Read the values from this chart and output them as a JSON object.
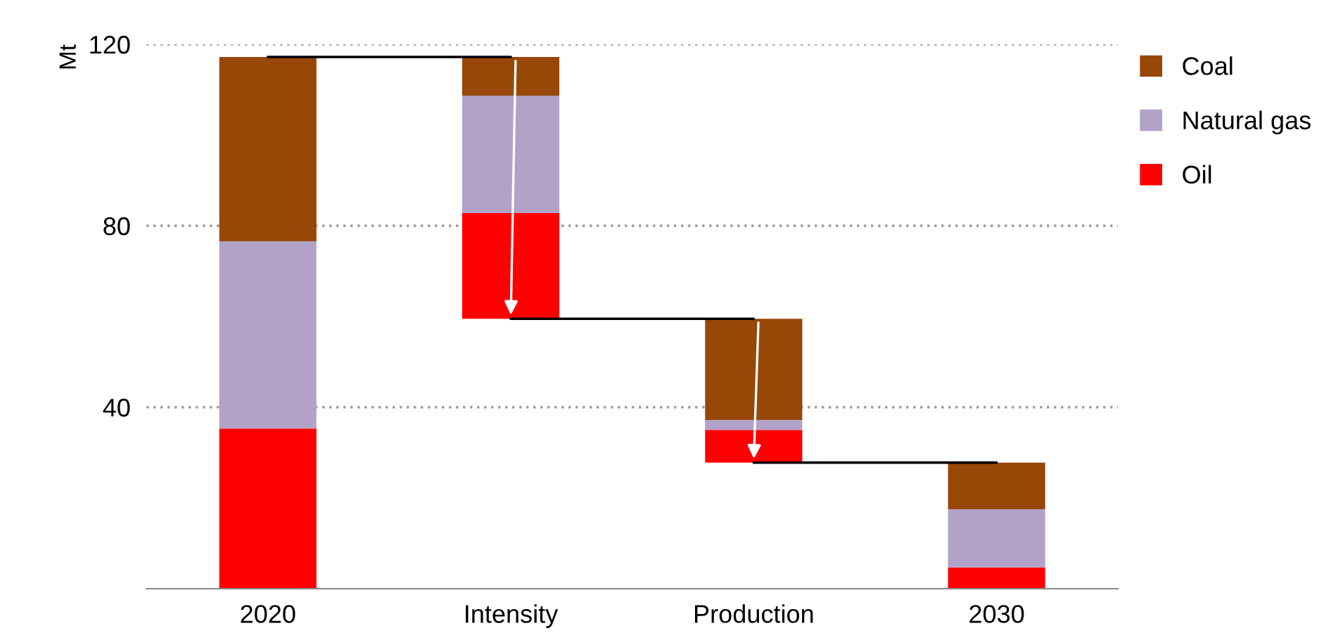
{
  "chart_data": {
    "type": "bar",
    "ylabel": "Mt",
    "categories": [
      "2020",
      "Intensity",
      "Production",
      "2030"
    ],
    "series": [
      {
        "name": "Oil",
        "color": "#ff0000",
        "base": [
          0,
          59.5,
          27.8,
          0
        ],
        "values": [
          35.3,
          23.3,
          7.2,
          4.7
        ]
      },
      {
        "name": "Natural gas",
        "color": "#b3a2c7",
        "base": [
          35.3,
          82.8,
          35,
          4.7
        ],
        "values": [
          41.3,
          25.9,
          2.2,
          12.8
        ]
      },
      {
        "name": "Coal",
        "color": "#974706",
        "base": [
          76.6,
          108.7,
          37.2,
          17.5
        ],
        "values": [
          40.6,
          8.5,
          22.3,
          10.3
        ]
      },
      {
        "type": "line",
        "color": "#000000",
        "values": [
          117.2,
          117.2,
          null,
          null
        ]
      },
      {
        "type": "line",
        "color": "#000000",
        "values": [
          null,
          59.5,
          59.5,
          null
        ]
      },
      {
        "type": "line",
        "color": "#000000",
        "values": [
          null,
          null,
          27.8,
          27.8
        ]
      }
    ],
    "ylim": [
      0,
      120
    ],
    "yticks": [
      40,
      80,
      120
    ],
    "grid": "y",
    "legend": "top right"
  }
}
